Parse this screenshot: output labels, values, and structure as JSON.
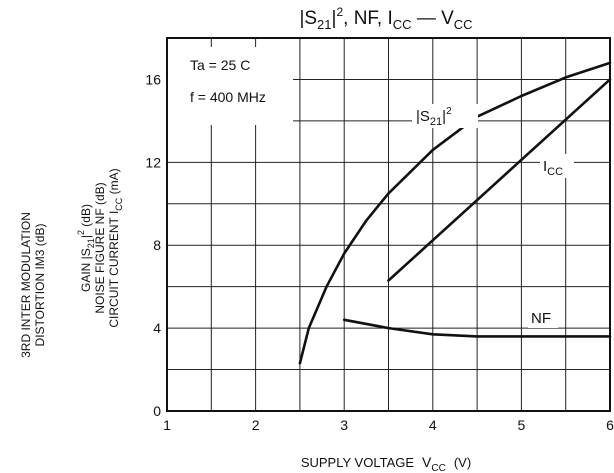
{
  "chart_data": {
    "type": "line",
    "title": {
      "base": "|S",
      "sub1": "21",
      "mid": "|",
      "sup": "2",
      "rest": ", NF, I",
      "sub2": "CC",
      "dash": " — V",
      "sub3": "CC"
    },
    "xlabel": {
      "text": "SUPPLY VOLTAGE",
      "sym": "V",
      "sub": "CC",
      "unit": "(V)"
    },
    "ylabel_lines": [
      {
        "pre": "GAIN  |S",
        "sub": "21",
        "post": "|",
        "sup": "2",
        "unit": "  (dB)"
      },
      {
        "pre": "NOISE FIGURE  NF  (dB)"
      },
      {
        "pre": "CIRCUIT CURRENT  I",
        "sub": "CC",
        "unit": "  (mA)"
      }
    ],
    "ylabel2_lines": [
      "3RD INTER MODULATION",
      "DISTORTION  IM3  (dB)"
    ],
    "xlim": [
      1,
      6
    ],
    "ylim": [
      0,
      18
    ],
    "x_ticks": [
      1,
      2,
      3,
      4,
      5,
      6
    ],
    "y_ticks": [
      0,
      4,
      8,
      12,
      16
    ],
    "annotations": [
      "Ta = 25 C",
      "f = 400 MHz"
    ],
    "series": [
      {
        "label": {
          "pre": "|S",
          "sub": "21",
          "post": "|",
          "sup": "2"
        },
        "x": [
          2.5,
          2.6,
          2.8,
          3.0,
          3.25,
          3.5,
          4.0,
          4.5,
          5.0,
          5.5,
          6.0
        ],
        "y": [
          2.3,
          4.0,
          6.0,
          7.6,
          9.2,
          10.5,
          12.6,
          14.2,
          15.2,
          16.1,
          16.8
        ]
      },
      {
        "label": {
          "pre": "I",
          "sub": "CC"
        },
        "x": [
          3.5,
          6.0
        ],
        "y": [
          6.3,
          16.0
        ]
      },
      {
        "label": {
          "pre": "NF"
        },
        "x": [
          3.0,
          3.5,
          4.0,
          4.5,
          5.0,
          5.5,
          6.0
        ],
        "y": [
          4.4,
          4.0,
          3.7,
          3.6,
          3.6,
          3.6,
          3.6
        ]
      }
    ]
  }
}
